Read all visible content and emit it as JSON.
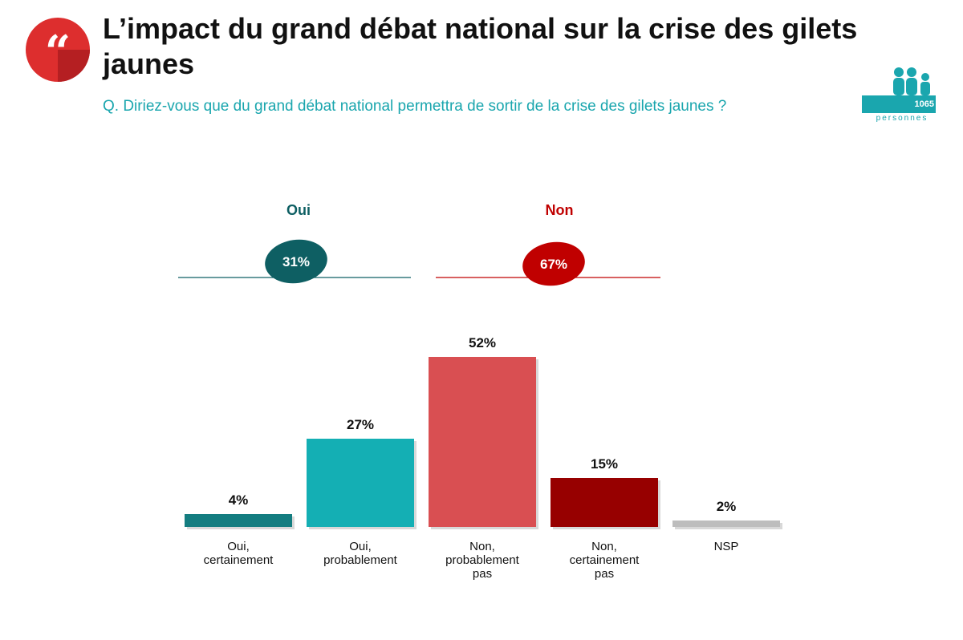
{
  "header": {
    "title": "L’impact du grand débat national sur la crise des gilets jaunes",
    "question": "Q. Diriez-vous que du grand débat national permettra de sortir de la crise des gilets jaunes ?"
  },
  "sample": {
    "count": "1065",
    "label": "personnes"
  },
  "summary": {
    "oui": {
      "label": "Oui",
      "value": "31%",
      "color": "#0e5f63"
    },
    "non": {
      "label": "Non",
      "value": "67%",
      "color": "#c00000"
    }
  },
  "chart_data": {
    "type": "bar",
    "title": "",
    "categories": [
      [
        "Oui,",
        "certainement"
      ],
      [
        "Oui,",
        "probablement"
      ],
      [
        "Non,",
        "probablement",
        "pas"
      ],
      [
        "Non,",
        "certainement",
        "pas"
      ],
      [
        "NSP"
      ]
    ],
    "values": [
      4,
      27,
      52,
      15,
      2
    ],
    "value_labels": [
      "4%",
      "27%",
      "52%",
      "15%",
      "2%"
    ],
    "colors": [
      "#147d80",
      "#14afb4",
      "#d94f52",
      "#970000",
      "#bdbdbd"
    ],
    "ylim": [
      0,
      52
    ],
    "xlabel": "",
    "ylabel": "",
    "grid": false
  }
}
